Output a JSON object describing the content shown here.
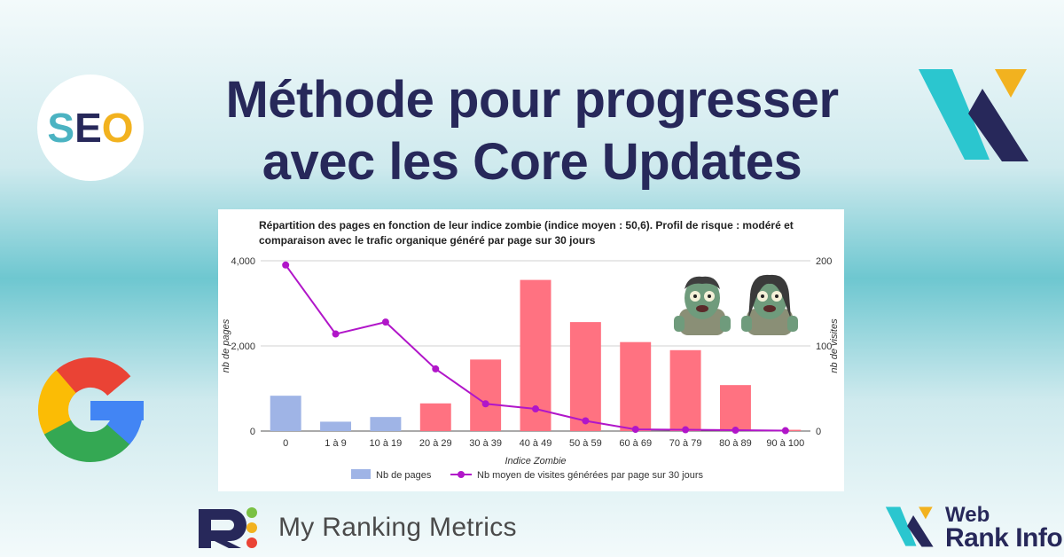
{
  "page": {
    "title_line1": "Méthode pour progresser",
    "title_line2": "avec les Core Updates",
    "seo_badge": {
      "s": "S",
      "e": "E",
      "o": "O"
    },
    "logos": {
      "top_right": "webrankinfo-w-icon",
      "left": "google-g-icon",
      "bottom_left_name": "My Ranking Metrics",
      "bottom_right_line1": "Web",
      "bottom_right_line2": "Rank Info"
    },
    "colors": {
      "title": "#27285a",
      "bar_positive": "#ff7281",
      "bar_negative": "#9fb4e6",
      "line": "#b116c9",
      "gridline": "#d0d0d0"
    },
    "icons": [
      "zombie-man-emoji-icon",
      "zombie-woman-emoji-icon"
    ]
  },
  "chart_data": {
    "type": "bar",
    "title": "Répartition des pages en fonction de leur indice zombie (indice moyen : 50,6). Profil de risque : modéré et comparaison avec le trafic organique généré par page sur 30 jours",
    "xlabel": "Indice Zombie",
    "ylabel": "nb de pages",
    "y2label": "nb de visites",
    "categories": [
      "0",
      "1 à 9",
      "10 à 19",
      "20 à 29",
      "30 à 39",
      "40 à 49",
      "50 à 59",
      "60 à 69",
      "70 à 79",
      "80 à 89",
      "90 à 100"
    ],
    "ylim": [
      0,
      4000
    ],
    "y2lim": [
      0,
      200
    ],
    "yticks": [
      "0",
      "2,000",
      "4,000"
    ],
    "y2ticks": [
      "0",
      "100",
      "200"
    ],
    "grid": true,
    "legend_position": "bottom",
    "series": [
      {
        "name": "Nb de pages",
        "kind": "bar",
        "axis": "left",
        "values": [
          830,
          220,
          330,
          650,
          1680,
          3550,
          2560,
          2090,
          1900,
          1080,
          30
        ],
        "bar_colors": [
          "#9fb4e6",
          "#9fb4e6",
          "#9fb4e6",
          "#ff7281",
          "#ff7281",
          "#ff7281",
          "#ff7281",
          "#ff7281",
          "#ff7281",
          "#ff7281",
          "#ff7281"
        ]
      },
      {
        "name": "Nb moyen de visites générées par page sur 30 jours",
        "kind": "line",
        "axis": "right",
        "values": [
          195,
          114,
          128,
          73,
          32,
          26,
          12,
          2,
          1.5,
          1,
          0.5
        ]
      }
    ]
  }
}
